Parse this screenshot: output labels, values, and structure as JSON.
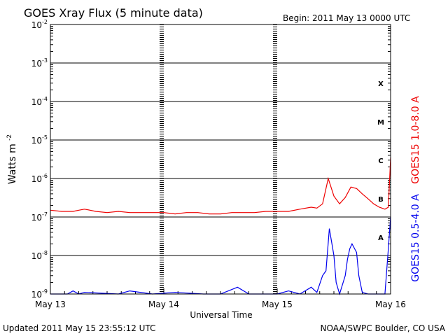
{
  "header": {
    "title": "GOES Xray Flux (5 minute data)",
    "begin": "Begin:  2011 May 13 0000 UTC"
  },
  "footer": {
    "updated": "Updated 2011 May 15 23:55:12 UTC",
    "credit": "NOAA/SWPC Boulder, CO USA"
  },
  "colors": {
    "long_channel": "#ee0000",
    "short_channel": "#0000ee",
    "axes": "#000000",
    "background": "#ffffff"
  },
  "chart_data": {
    "type": "line",
    "title": "GOES Xray Flux (5 minute data)",
    "xlabel": "Universal Time",
    "ylabel_base": "Watts m",
    "ylabel_exp": "-2",
    "yscale": "log",
    "ylim": [
      1e-09,
      0.01
    ],
    "xlim_days": [
      0,
      3
    ],
    "grid": true,
    "x_ticks": [
      "May 13",
      "May 14",
      "May 15",
      "May 16"
    ],
    "y_ticks": [
      {
        "value": 0.01,
        "base": "10",
        "exp": "-2"
      },
      {
        "value": 0.001,
        "base": "10",
        "exp": "-3"
      },
      {
        "value": 0.0001,
        "base": "10",
        "exp": "-4"
      },
      {
        "value": 1e-05,
        "base": "10",
        "exp": "-5"
      },
      {
        "value": 1e-06,
        "base": "10",
        "exp": "-6"
      },
      {
        "value": 1e-07,
        "base": "10",
        "exp": "-7"
      },
      {
        "value": 1e-08,
        "base": "10",
        "exp": "-8"
      },
      {
        "value": 1e-09,
        "base": "10",
        "exp": "-9"
      }
    ],
    "flare_classes": [
      {
        "label": "X",
        "value": 0.0003
      },
      {
        "label": "M",
        "value": 3e-05
      },
      {
        "label": "C",
        "value": 3e-06
      },
      {
        "label": "B",
        "value": 3e-07
      },
      {
        "label": "A",
        "value": 3e-08
      }
    ],
    "series": [
      {
        "name": "GOES15 1.0-8.0 A",
        "color": "#ee0000",
        "x": [
          0,
          0.1,
          0.2,
          0.25,
          0.3,
          0.35,
          0.4,
          0.5,
          0.6,
          0.7,
          0.8,
          0.9,
          1.0,
          1.1,
          1.2,
          1.3,
          1.4,
          1.5,
          1.6,
          1.7,
          1.8,
          1.9,
          2.0,
          2.1,
          2.2,
          2.3,
          2.35,
          2.4,
          2.45,
          2.5,
          2.55,
          2.6,
          2.65,
          2.7,
          2.75,
          2.8,
          2.85,
          2.9,
          2.95,
          2.98,
          3.0
        ],
        "y": [
          1.5e-07,
          1.4e-07,
          1.4e-07,
          1.5e-07,
          1.6e-07,
          1.5e-07,
          1.4e-07,
          1.3e-07,
          1.4e-07,
          1.3e-07,
          1.3e-07,
          1.3e-07,
          1.3e-07,
          1.2e-07,
          1.3e-07,
          1.3e-07,
          1.2e-07,
          1.2e-07,
          1.3e-07,
          1.3e-07,
          1.3e-07,
          1.4e-07,
          1.4e-07,
          1.4e-07,
          1.6e-07,
          1.8e-07,
          1.7e-07,
          2.2e-07,
          1e-06,
          3.5e-07,
          2.2e-07,
          3.2e-07,
          6e-07,
          5.5e-07,
          4e-07,
          3e-07,
          2.2e-07,
          1.8e-07,
          1.6e-07,
          1.8e-07,
          3.5e-06
        ]
      },
      {
        "name": "GOES15 0.5-4.0 A",
        "color": "#0000ee",
        "x": [
          0,
          0.15,
          0.2,
          0.25,
          0.3,
          0.6,
          0.7,
          0.9,
          1.1,
          1.35,
          1.5,
          1.65,
          1.75,
          1.85,
          2.0,
          2.1,
          2.2,
          2.3,
          2.35,
          2.4,
          2.43,
          2.46,
          2.5,
          2.52,
          2.55,
          2.6,
          2.62,
          2.64,
          2.66,
          2.7,
          2.72,
          2.75,
          2.8,
          2.85,
          2.9,
          2.95,
          2.98,
          3.0
        ],
        "y": [
          1e-09,
          1e-09,
          1.2e-09,
          1e-09,
          1.1e-09,
          1e-09,
          1.2e-09,
          1e-09,
          1.1e-09,
          1e-09,
          1e-09,
          1.5e-09,
          1e-09,
          1e-09,
          1e-09,
          1.2e-09,
          1e-09,
          1.5e-09,
          1.1e-09,
          3e-09,
          4e-09,
          5e-08,
          1e-08,
          2e-09,
          1e-09,
          3e-09,
          8e-09,
          1.5e-08,
          2e-08,
          1.2e-08,
          3e-09,
          1.1e-09,
          1e-09,
          1e-09,
          1e-09,
          1e-09,
          1.5e-08,
          1e-07
        ]
      }
    ]
  }
}
